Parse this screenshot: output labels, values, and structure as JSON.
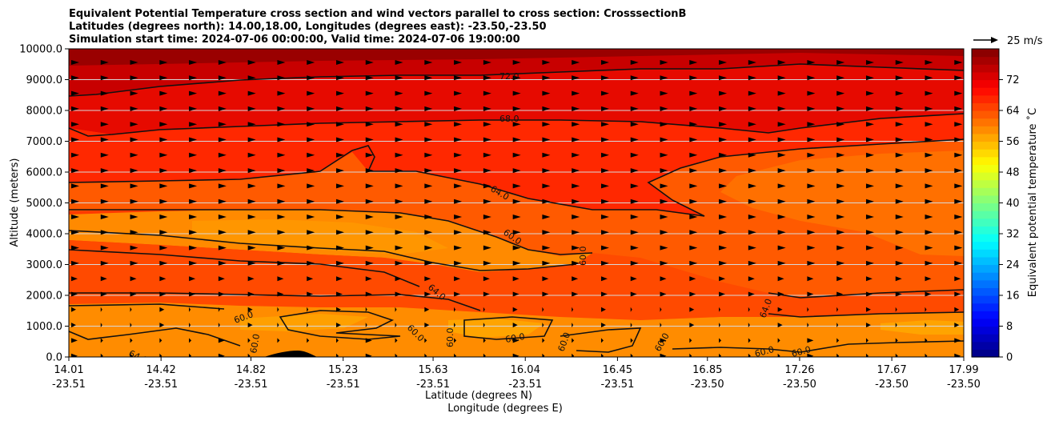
{
  "chart_data": {
    "type": "cross-section-contour",
    "title_lines": [
      "Equivalent Potential Temperature cross section and wind vectors parallel to cross section: CrosssectionB",
      "Latitudes (degrees north): 14.00,18.00, Longitudes (degrees east): -23.50,-23.50",
      "Simulation start time: 2024-07-06 00:00:00, Valid time: 2024-07-06 19:00:00"
    ],
    "xlabel_lat": "Latitude (degrees N)",
    "xlabel_lon": "Longitude (degrees E)",
    "ylabel": "Altitude (meters)",
    "x_ticks": [
      {
        "lat": "14.01",
        "lon": "-23.51"
      },
      {
        "lat": "14.42",
        "lon": "-23.51"
      },
      {
        "lat": "14.82",
        "lon": "-23.51"
      },
      {
        "lat": "15.23",
        "lon": "-23.51"
      },
      {
        "lat": "15.63",
        "lon": "-23.51"
      },
      {
        "lat": "16.04",
        "lon": "-23.51"
      },
      {
        "lat": "16.45",
        "lon": "-23.51"
      },
      {
        "lat": "16.85",
        "lon": "-23.50"
      },
      {
        "lat": "17.26",
        "lon": "-23.50"
      },
      {
        "lat": "17.67",
        "lon": "-23.50"
      },
      {
        "lat": "17.99",
        "lon": "-23.50"
      }
    ],
    "x_range": [
      14.01,
      17.99
    ],
    "y_ticks": [
      "0.0",
      "1000.0",
      "2000.0",
      "3000.0",
      "4000.0",
      "5000.0",
      "6000.0",
      "7000.0",
      "8000.0",
      "9000.0",
      "10000.0"
    ],
    "ylim": [
      0,
      10000
    ],
    "horizontal_gridlines": true,
    "colorbar": {
      "label": "Equivalent potential temperature ˚C",
      "ticks": [
        "0",
        "8",
        "16",
        "24",
        "32",
        "40",
        "48",
        "56",
        "64",
        "72"
      ],
      "range": [
        0,
        80
      ],
      "colormap": "jet"
    },
    "contour_levels": [
      60.0,
      64.0,
      68.0,
      72.0
    ],
    "contour_labels": [
      "72.0",
      "68.0",
      "64.0",
      "60.0",
      "60.0",
      "64.0",
      "60.0",
      "60.0",
      "60.0",
      "60.0",
      "60.0",
      "60.0",
      "64.0",
      "64.0",
      "60.0",
      "60.0",
      "60.0"
    ],
    "wind_vectors": {
      "direction": "parallel to cross section (toward higher latitude)",
      "reference": "25 m/s"
    }
  }
}
